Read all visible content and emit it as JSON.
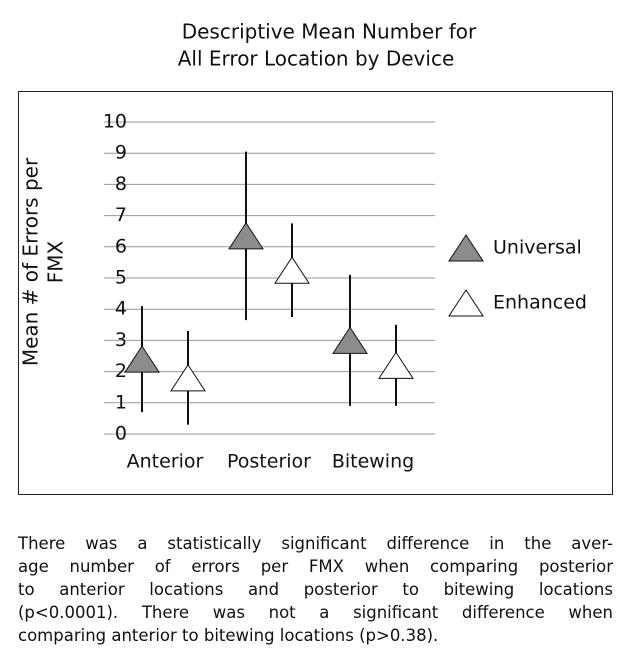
{
  "chart_data": {
    "type": "errorbar",
    "title": [
      "Descriptive Mean Number for",
      "All Error Location by Device"
    ],
    "ylabel": [
      "Mean # of Errors per",
      "FMX"
    ],
    "categories": [
      "Anterior",
      "Posterior",
      "Bitewing"
    ],
    "series": [
      {
        "name": "Universal",
        "color": "#8c8c8c",
        "values": [
          2.4,
          6.35,
          3.0
        ],
        "errors": [
          1.7,
          2.7,
          2.1
        ]
      },
      {
        "name": "Enhanced",
        "color": "#ffffff",
        "values": [
          1.8,
          5.25,
          2.2
        ],
        "errors": [
          1.5,
          1.5,
          1.3
        ]
      }
    ],
    "ylim": [
      0,
      10
    ],
    "yticks": [
      0,
      1,
      2,
      3,
      4,
      5,
      6,
      7,
      8,
      9,
      10
    ],
    "grid": true,
    "legend": "right"
  },
  "caption": [
    "There was a statistically significant difference in the aver-",
    "age number of errors per FMX when comparing posterior",
    "to anterior locations and posterior to bitewing locations",
    "(p<0.0001). There was not a significant difference when",
    "comparing anterior to bitewing locations (p>0.38)."
  ]
}
